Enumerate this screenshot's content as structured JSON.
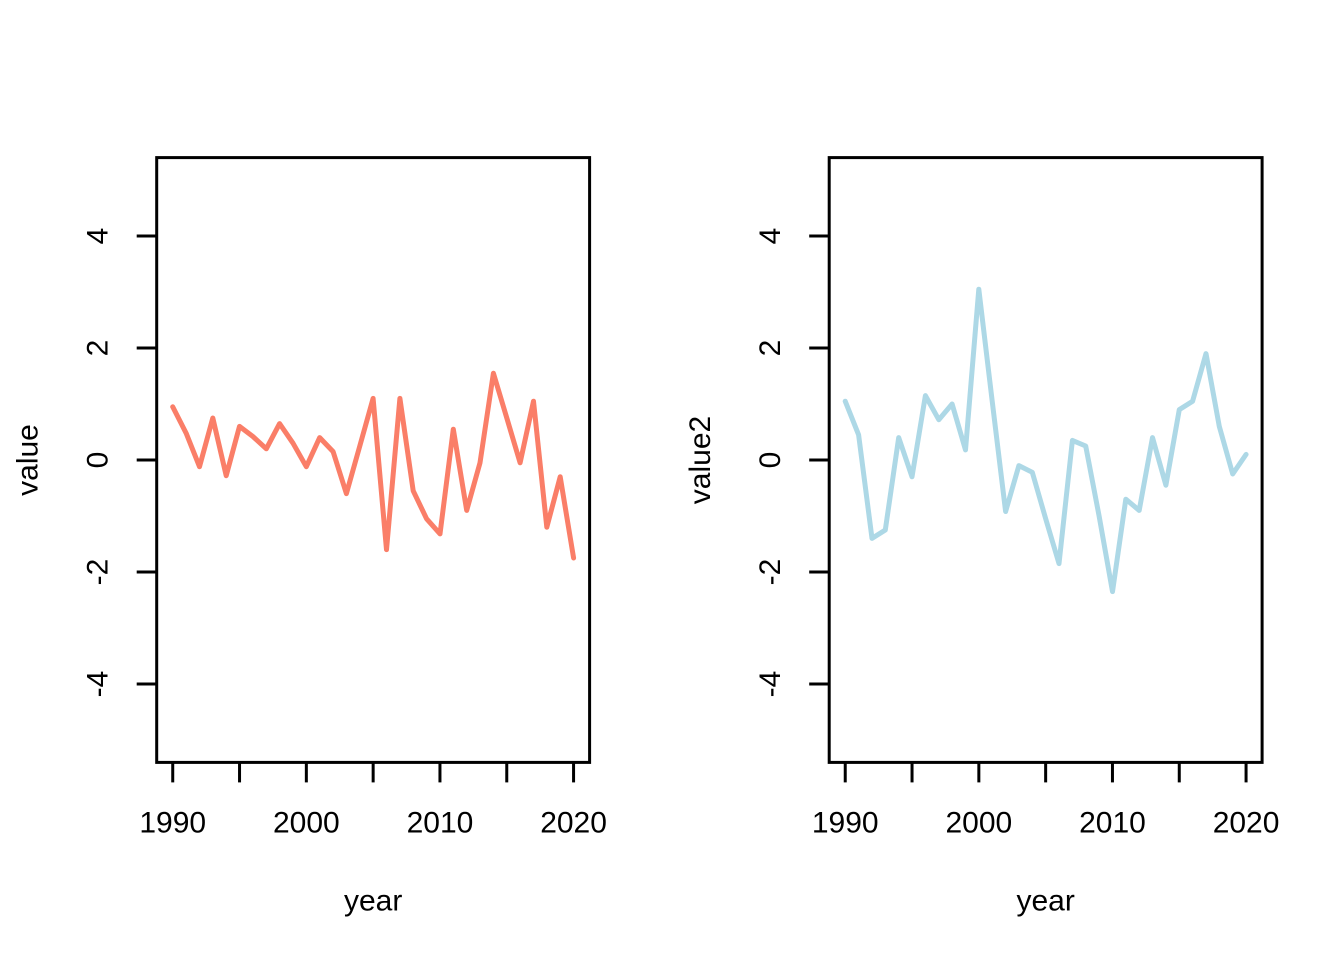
{
  "figure": {
    "background_color": "#ffffff",
    "axis_color": "#000000",
    "panel_count": 2
  },
  "chart_data": [
    {
      "type": "line",
      "panel": "left",
      "title": "",
      "xlabel": "year",
      "ylabel": "value",
      "line_color": "#FA7E68",
      "line_width": 5,
      "grid": false,
      "legend": null,
      "xlim": [
        1988.8,
        2021.2
      ],
      "ylim": [
        -5.4,
        5.4
      ],
      "x_ticks": [
        1990,
        1995,
        2000,
        2005,
        2010,
        2015,
        2020
      ],
      "x_tick_labels": [
        "1990",
        "",
        "2000",
        "",
        "2010",
        "",
        "2020"
      ],
      "y_ticks": [
        -4,
        -2,
        0,
        2,
        4
      ],
      "y_tick_labels": [
        "-4",
        "-2",
        "0",
        "2",
        "4"
      ],
      "x": [
        1990,
        1991,
        1992,
        1993,
        1994,
        1995,
        1996,
        1997,
        1998,
        1999,
        2000,
        2001,
        2002,
        2003,
        2004,
        2005,
        2006,
        2007,
        2008,
        2009,
        2010,
        2011,
        2012,
        2013,
        2014,
        2015,
        2016,
        2017,
        2018,
        2019,
        2020
      ],
      "values": [
        0.95,
        0.48,
        -0.12,
        0.75,
        -0.28,
        0.6,
        0.42,
        0.2,
        0.65,
        0.3,
        -0.12,
        0.4,
        0.15,
        -0.6,
        0.25,
        1.1,
        -1.6,
        1.1,
        -0.55,
        -1.05,
        -1.32,
        0.55,
        -0.9,
        -0.05,
        1.55,
        0.75,
        -0.05,
        1.05,
        -1.2,
        -0.3,
        -1.75
      ]
    },
    {
      "type": "line",
      "panel": "right",
      "title": "",
      "xlabel": "year",
      "ylabel": "value2",
      "line_color": "#ADD8E6",
      "line_width": 5,
      "grid": false,
      "legend": null,
      "xlim": [
        1988.8,
        2021.2
      ],
      "ylim": [
        -5.4,
        5.4
      ],
      "x_ticks": [
        1990,
        1995,
        2000,
        2005,
        2010,
        2015,
        2020
      ],
      "x_tick_labels": [
        "1990",
        "",
        "2000",
        "",
        "2010",
        "",
        "2020"
      ],
      "y_ticks": [
        -4,
        -2,
        0,
        2,
        4
      ],
      "y_tick_labels": [
        "-4",
        "-2",
        "0",
        "2",
        "4"
      ],
      "x": [
        1990,
        1991,
        1992,
        1993,
        1994,
        1995,
        1996,
        1997,
        1998,
        1999,
        2000,
        2001,
        2002,
        2003,
        2004,
        2005,
        2006,
        2007,
        2008,
        2009,
        2010,
        2011,
        2012,
        2013,
        2014,
        2015,
        2016,
        2017,
        2018,
        2019,
        2020
      ],
      "values": [
        1.05,
        0.45,
        -1.4,
        -1.25,
        0.4,
        -0.3,
        1.15,
        0.72,
        1.0,
        0.18,
        3.05,
        1.05,
        -0.92,
        -0.1,
        -0.22,
        -1.05,
        -1.85,
        0.35,
        0.25,
        -1.0,
        -2.35,
        -0.7,
        -0.9,
        0.4,
        -0.45,
        0.9,
        1.05,
        1.9,
        0.6,
        -0.25,
        0.1
      ]
    }
  ]
}
